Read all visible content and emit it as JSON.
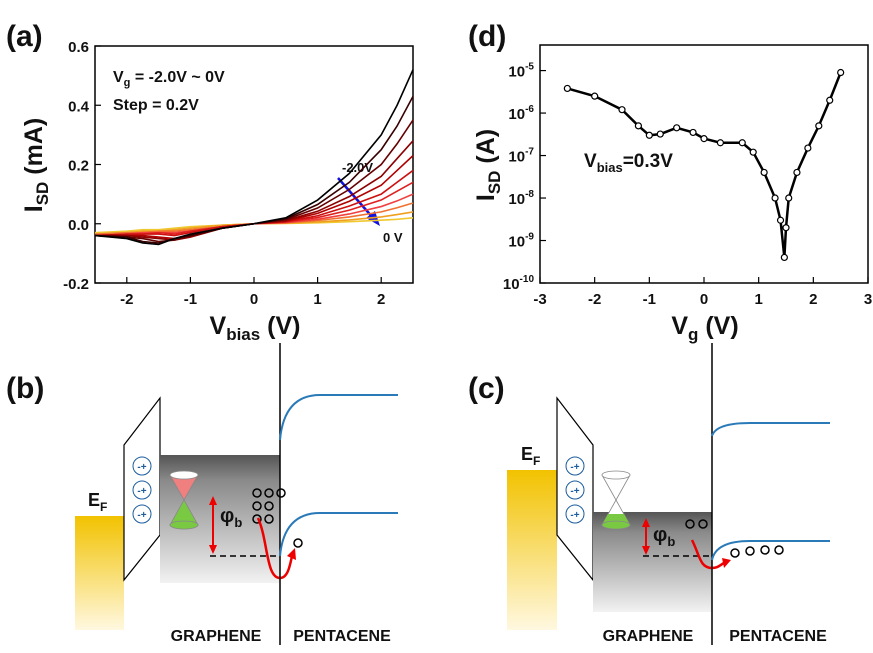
{
  "chart_data": [
    {
      "type": "line",
      "panel_label": "(a)",
      "xlabel": {
        "main": "V",
        "sub": "bias",
        "rest": " (V)"
      },
      "ylabel": {
        "main": "I",
        "sub": "SD",
        "rest": " (mA)"
      },
      "annotations": {
        "gate": {
          "main": "V",
          "sub": "g",
          "rest": " = -2.0V ~ 0V"
        },
        "step": "Step = 0.2V",
        "arrow_start": "-2.0V",
        "arrow_end": "0 V"
      },
      "xlim": [
        -2.5,
        2.5
      ],
      "xticks": [
        -2,
        -1,
        0,
        1,
        2
      ],
      "ylim": [
        -0.2,
        0.6
      ],
      "yticks": [
        -0.2,
        {
          "value": 0,
          "label": "0.0"
        },
        0.2,
        0.4,
        0.6
      ],
      "x": [
        -2.5,
        -2,
        -1.75,
        -1.5,
        -1.25,
        -1,
        -0.5,
        0,
        0.5,
        1,
        1.5,
        2,
        2.25,
        2.5
      ],
      "series": [
        {
          "color": "#000000",
          "values": [
            -0.04,
            -0.05,
            -0.065,
            -0.07,
            -0.05,
            -0.035,
            -0.015,
            0,
            0.02,
            0.08,
            0.17,
            0.3,
            0.4,
            0.52
          ]
        },
        {
          "color": "#3a0000",
          "values": [
            -0.04,
            -0.045,
            -0.06,
            -0.065,
            -0.05,
            -0.04,
            -0.015,
            0,
            0.017,
            0.065,
            0.14,
            0.25,
            0.33,
            0.43
          ]
        },
        {
          "color": "#660000",
          "values": [
            -0.04,
            -0.045,
            -0.05,
            -0.06,
            -0.055,
            -0.04,
            -0.015,
            0,
            0.014,
            0.053,
            0.116,
            0.2,
            0.27,
            0.35
          ]
        },
        {
          "color": "#8c0000",
          "values": [
            -0.04,
            -0.04,
            -0.045,
            -0.05,
            -0.055,
            -0.045,
            -0.015,
            0,
            0.011,
            0.042,
            0.092,
            0.16,
            0.22,
            0.28
          ]
        },
        {
          "color": "#b00000",
          "values": [
            -0.04,
            -0.04,
            -0.04,
            -0.045,
            -0.05,
            -0.04,
            -0.015,
            0,
            0.009,
            0.035,
            0.076,
            0.13,
            0.18,
            0.23
          ]
        },
        {
          "color": "#cc1010",
          "values": [
            -0.04,
            -0.035,
            -0.035,
            -0.035,
            -0.04,
            -0.03,
            -0.01,
            0,
            0.007,
            0.027,
            0.06,
            0.1,
            0.14,
            0.18
          ]
        },
        {
          "color": "#e02020",
          "values": [
            -0.04,
            -0.035,
            -0.035,
            -0.03,
            -0.035,
            -0.025,
            -0.01,
            0,
            0.006,
            0.021,
            0.046,
            0.08,
            0.11,
            0.14
          ]
        },
        {
          "color": "#f04040",
          "values": [
            -0.04,
            -0.035,
            -0.03,
            -0.03,
            -0.03,
            -0.025,
            -0.01,
            0,
            0.004,
            0.015,
            0.033,
            0.058,
            0.077,
            0.1
          ]
        },
        {
          "color": "#f07030",
          "values": [
            -0.035,
            -0.03,
            -0.03,
            -0.025,
            -0.025,
            -0.02,
            -0.01,
            0,
            0.003,
            0.011,
            0.023,
            0.04,
            0.054,
            0.07
          ]
        },
        {
          "color": "#f0a020",
          "values": [
            -0.035,
            -0.03,
            -0.025,
            -0.025,
            -0.02,
            -0.015,
            -0.005,
            0,
            0.002,
            0.006,
            0.013,
            0.023,
            0.031,
            0.04
          ]
        },
        {
          "color": "#f0c830",
          "values": [
            -0.03,
            -0.025,
            -0.02,
            -0.02,
            -0.015,
            -0.01,
            -0.005,
            0,
            0.001,
            0.003,
            0.007,
            0.012,
            0.015,
            0.02
          ]
        }
      ]
    },
    {
      "type": "line",
      "markers": true,
      "log_y": true,
      "panel_label": "(d)",
      "xlabel": {
        "main": "V",
        "sub": "g",
        "rest": " (V)"
      },
      "ylabel": {
        "main": "I",
        "sub": "SD",
        "rest": " (A)"
      },
      "annotations": {
        "bias": {
          "main": "V",
          "sub": "bias",
          "rest": "=0.3V"
        }
      },
      "xlim": [
        -3,
        3
      ],
      "xticks": [
        -3,
        -2,
        -1,
        0,
        1,
        2,
        3
      ],
      "ylim": [
        1e-10,
        4e-05
      ],
      "yticks": [
        {
          "value": 1e-10,
          "label": {
            "base": "10",
            "exp": "-10"
          }
        },
        {
          "value": 1e-09,
          "label": {
            "base": "10",
            "exp": "-9"
          }
        },
        {
          "value": 1e-08,
          "label": {
            "base": "10",
            "exp": "-8"
          }
        },
        {
          "value": 1e-07,
          "label": {
            "base": "10",
            "exp": "-7"
          }
        },
        {
          "value": 1e-06,
          "label": {
            "base": "10",
            "exp": "-6"
          }
        },
        {
          "value": 1e-05,
          "label": {
            "base": "10",
            "exp": "-5"
          }
        }
      ],
      "x": [
        -2.5,
        -2,
        -1.5,
        -1.2,
        -1,
        -0.8,
        -0.5,
        -0.2,
        0,
        0.3,
        0.7,
        0.9,
        1.1,
        1.3,
        1.4,
        1.47,
        1.5,
        1.55,
        1.7,
        1.9,
        2.1,
        2.3,
        2.5
      ],
      "series": [
        {
          "color": "#000000",
          "values": [
            3.8e-06,
            2.5e-06,
            1.2e-06,
            5e-07,
            3e-07,
            3.2e-07,
            4.5e-07,
            3.5e-07,
            2.5e-07,
            2e-07,
            2e-07,
            1.2e-07,
            4e-08,
            1e-08,
            3e-09,
            4e-10,
            2e-09,
            1e-08,
            4e-08,
            1.5e-07,
            5e-07,
            2e-06,
            9e-06
          ]
        }
      ]
    }
  ],
  "diagrams": {
    "b": {
      "panel_label": "(b)",
      "fermi": {
        "main": "E",
        "sub": "F"
      },
      "dipole": "-+",
      "barrier": {
        "main": "φ",
        "sub": "b"
      },
      "left": "GRAPHENE",
      "right": "PENTACENE"
    },
    "c": {
      "panel_label": "(c)",
      "fermi": {
        "main": "E",
        "sub": "F"
      },
      "dipole": "-+",
      "barrier": {
        "main": "φ",
        "sub": "b"
      },
      "left": "GRAPHENE",
      "right": "PENTACENE"
    }
  }
}
